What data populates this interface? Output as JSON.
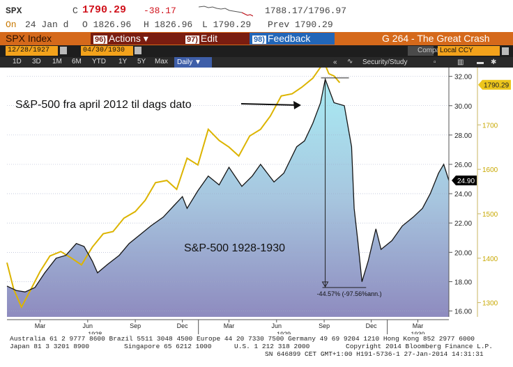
{
  "ticker": {
    "symbol": "SPX",
    "close_label": "C",
    "last": "1790.29",
    "change": "-38.17",
    "range": "1788.17/1796.97"
  },
  "ohlc": {
    "on_label": "On",
    "date": "24 Jan d",
    "open": "O 1826.96",
    "high": "H 1826.96",
    "low": "L 1790.29",
    "prev": "Prev  1790.29"
  },
  "menu": {
    "title": "SPX Index",
    "actions_num": "96)",
    "actions": "Actions ▾",
    "edit_num": "97)",
    "edit": "Edit",
    "feedback_num": "98)",
    "feedback": "Feedback",
    "page": "G 264 - The Great Crash"
  },
  "dates": {
    "start": "12/28/1927",
    "end": "04/30/1930",
    "compare": "Compare",
    "currency": "Local CCY"
  },
  "periods": [
    "1D",
    "3D",
    "1M",
    "6M",
    "YTD",
    "1Y",
    "5Y",
    "Max"
  ],
  "frequency": "Daily ▼",
  "security": "Security/Study",
  "collapse": "«",
  "colors": {
    "gold": "#dcb400",
    "black_line": "#141414",
    "area_top": "#a8ecf4",
    "area_bottom": "#8e8bbf",
    "menu_orange": "#d5691b"
  },
  "chart_data": {
    "type": "area",
    "left_axis": {
      "ticks": [
        "32.00",
        "30.00",
        "28.00",
        "26.00",
        "24.00",
        "22.00",
        "20.00",
        "18.00",
        "16.00"
      ],
      "values": [
        32,
        30,
        28,
        26,
        24,
        22,
        20,
        18,
        16
      ],
      "range": [
        15.6,
        32.6
      ]
    },
    "right_axis": {
      "ticks": [
        "1700",
        "1600",
        "1500",
        "1400",
        "1300"
      ],
      "values": [
        1700,
        1600,
        1500,
        1400,
        1300
      ],
      "range": [
        1268,
        1829
      ]
    },
    "x_labels": [
      {
        "label": "Mar",
        "date": "1928-03-01"
      },
      {
        "label": "Jun",
        "date": "1928-06-01"
      },
      {
        "label": "Sep",
        "date": "1928-09-01"
      },
      {
        "label": "Dec",
        "date": "1928-12-01"
      },
      {
        "label": "Mar",
        "date": "1929-03-01"
      },
      {
        "label": "Jun",
        "date": "1929-06-01"
      },
      {
        "label": "Sep",
        "date": "1929-09-01"
      },
      {
        "label": "Dec",
        "date": "1929-12-01"
      },
      {
        "label": "Mar",
        "date": "1930-03-01"
      }
    ],
    "year_labels": [
      {
        "label": "1928",
        "date": "1928-06-15"
      },
      {
        "label": "1929",
        "date": "1929-06-15"
      },
      {
        "label": "1930",
        "date": "1930-03-01"
      }
    ],
    "x_range": [
      "1927-12-28",
      "1930-04-30"
    ],
    "series": [
      {
        "name": "S&P-500 1928-1930",
        "color": "#141414",
        "axis": "left",
        "dates": [
          "1927-12-28",
          "1928-01-15",
          "1928-02-01",
          "1928-02-20",
          "1928-03-10",
          "1928-04-01",
          "1928-04-20",
          "1928-05-10",
          "1928-05-25",
          "1928-06-10",
          "1928-06-20",
          "1928-07-10",
          "1928-08-01",
          "1928-08-20",
          "1928-09-10",
          "1928-10-01",
          "1928-10-25",
          "1928-11-15",
          "1928-12-01",
          "1928-12-10",
          "1928-12-31",
          "1929-01-20",
          "1929-02-10",
          "1929-03-01",
          "1929-03-26",
          "1929-04-15",
          "1929-05-01",
          "1929-05-27",
          "1929-06-15",
          "1929-07-10",
          "1929-07-25",
          "1929-08-10",
          "1929-08-25",
          "1929-09-03",
          "1929-09-20",
          "1929-10-10",
          "1929-10-24",
          "1929-10-29",
          "1929-11-05",
          "1929-11-13",
          "1929-11-25",
          "1929-12-10",
          "1929-12-20",
          "1930-01-10",
          "1930-01-30",
          "1930-02-20",
          "1930-03-10",
          "1930-03-25",
          "1930-04-10",
          "1930-04-20",
          "1930-04-30"
        ],
        "values": [
          17.7,
          17.4,
          17.3,
          17.6,
          18.6,
          19.6,
          19.8,
          20.6,
          20.4,
          19.4,
          18.6,
          19.2,
          19.8,
          20.6,
          21.2,
          21.8,
          22.4,
          23.2,
          23.8,
          23.0,
          24.2,
          25.2,
          24.6,
          25.8,
          24.5,
          25.2,
          26.0,
          24.8,
          25.4,
          27.2,
          27.6,
          28.8,
          30.2,
          31.8,
          30.2,
          30.0,
          27.2,
          23.0,
          20.8,
          18.0,
          19.4,
          21.6,
          20.2,
          20.8,
          21.8,
          22.4,
          23.0,
          24.0,
          25.4,
          26.0,
          24.9
        ]
      },
      {
        "name": "S&P-500 fra april 2012 til dags dato",
        "color": "#dcb400",
        "axis": "right",
        "dates": [
          "1927-12-28",
          "1928-01-10",
          "1928-01-25",
          "1928-02-10",
          "1928-03-01",
          "1928-03-20",
          "1928-04-10",
          "1928-05-01",
          "1928-05-20",
          "1928-06-10",
          "1928-07-01",
          "1928-07-20",
          "1928-08-10",
          "1928-09-01",
          "1928-09-20",
          "1928-10-10",
          "1928-11-01",
          "1928-11-20",
          "1928-12-10",
          "1928-12-31",
          "1929-01-20",
          "1929-02-10",
          "1929-03-01",
          "1929-03-20",
          "1929-04-10",
          "1929-05-01",
          "1929-05-20",
          "1929-06-10",
          "1929-07-01",
          "1929-07-20",
          "1929-08-10",
          "1929-08-25",
          "1929-09-03",
          "1929-09-10",
          "1929-09-20",
          "1929-10-01"
        ],
        "values": [
          1390,
          1330,
          1290,
          1325,
          1370,
          1405,
          1415,
          1400,
          1385,
          1425,
          1455,
          1460,
          1490,
          1505,
          1530,
          1570,
          1575,
          1555,
          1625,
          1610,
          1690,
          1665,
          1650,
          1630,
          1675,
          1690,
          1720,
          1765,
          1770,
          1785,
          1805,
          1830,
          1835,
          1815,
          1810,
          1795
        ]
      }
    ],
    "current_left_label": "24.90",
    "current_right_label": "1790.29",
    "annotations": [
      {
        "text": "S&P-500 fra april 2012 til dags dato"
      },
      {
        "text": "S&P-500 1928-1930"
      },
      {
        "text": "-44.57% (-97.56%ann.)",
        "from_date": "1929-09-03",
        "from_value": 31.8,
        "to_date": "1929-11-13",
        "to_value": 17.6
      }
    ]
  },
  "footer": {
    "line1": "Australia 61 2 9777 8600 Brazil 5511 3048 4500 Europe 44 20 7330 7500 Germany 49 69 9204 1210 Hong Kong 852 2977 6000",
    "line2a": "Japan 81 3 3201 8900",
    "line2b": "Singapore 65 6212 1000",
    "line2c": "U.S. 1 212 318 2000",
    "line2d": "Copyright 2014 Bloomberg Finance L.P.",
    "line3": "SN 646899 CET  GMT+1:00 H191-5736-1 27-Jan-2014 14:31:31"
  }
}
